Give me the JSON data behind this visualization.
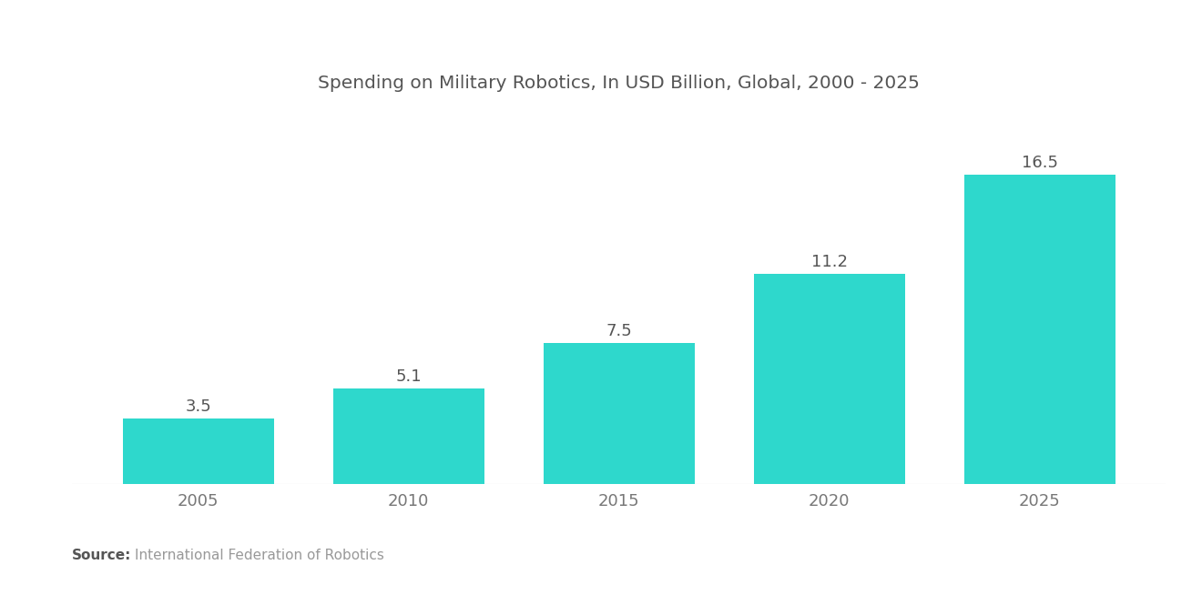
{
  "title": "Spending on Military Robotics, In USD Billion, Global, 2000 - 2025",
  "categories": [
    "2005",
    "2010",
    "2015",
    "2020",
    "2025"
  ],
  "values": [
    3.5,
    5.1,
    7.5,
    11.2,
    16.5
  ],
  "bar_color": "#2ED8CC",
  "bar_width": 0.72,
  "value_labels": [
    "3.5",
    "5.1",
    "7.5",
    "11.2",
    "16.5"
  ],
  "source_bold": "Source:",
  "source_text": "International Federation of Robotics",
  "background_color": "#ffffff",
  "title_fontsize": 14.5,
  "label_fontsize": 13,
  "tick_fontsize": 13,
  "source_fontsize": 11,
  "ylim": [
    0,
    20
  ],
  "title_color": "#555555",
  "tick_color": "#777777",
  "value_label_color": "#555555",
  "source_bold_color": "#555555",
  "source_text_color": "#999999"
}
